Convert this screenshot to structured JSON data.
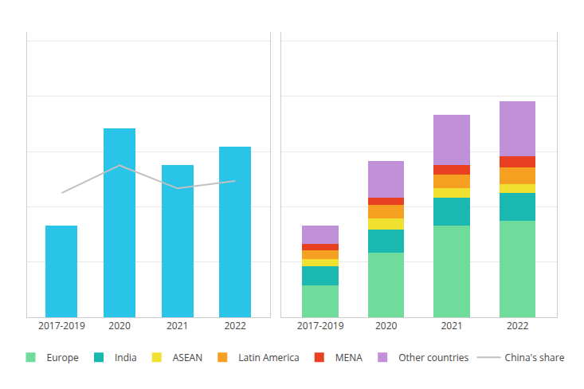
{
  "chart_data": [
    {
      "type": "bar",
      "categories": [
        "2017-2019",
        "2020",
        "2021",
        "2022"
      ],
      "series": [
        {
          "type": "bar",
          "color": "#29c4e8",
          "values": [
            100,
            205,
            165,
            185
          ]
        },
        {
          "name": "China's share",
          "type": "line",
          "color": "#c0c0c0",
          "values": [
            135,
            165,
            140,
            148
          ]
        }
      ],
      "ylim": [
        0,
        310
      ],
      "yticks": [
        0,
        60,
        120,
        180,
        240,
        300
      ],
      "grid": true,
      "tick_labels": "x",
      "legend": "bottom"
    },
    {
      "type": "bar",
      "categories": [
        "2017-2019",
        "2020",
        "2021",
        "2022"
      ],
      "stacked": true,
      "series": [
        {
          "name": "Europe",
          "color": "#6fdc9c",
          "values": [
            35,
            70,
            100,
            105
          ]
        },
        {
          "name": "India",
          "color": "#1ab8b0",
          "values": [
            20,
            25,
            30,
            30
          ]
        },
        {
          "name": "ASEAN",
          "color": "#f0e030",
          "values": [
            8,
            12,
            10,
            10
          ]
        },
        {
          "name": "Latin America",
          "color": "#f5a020",
          "values": [
            10,
            15,
            15,
            18
          ]
        },
        {
          "name": "MENA",
          "color": "#e84020",
          "values": [
            7,
            8,
            10,
            12
          ]
        },
        {
          "name": "Other countries",
          "color": "#c090d8",
          "values": [
            20,
            40,
            55,
            60
          ]
        }
      ],
      "ylim": [
        0,
        310
      ],
      "yticks": [
        0,
        60,
        120,
        180,
        240,
        300
      ],
      "grid": true,
      "tick_labels": "x",
      "legend": "bottom"
    }
  ]
}
